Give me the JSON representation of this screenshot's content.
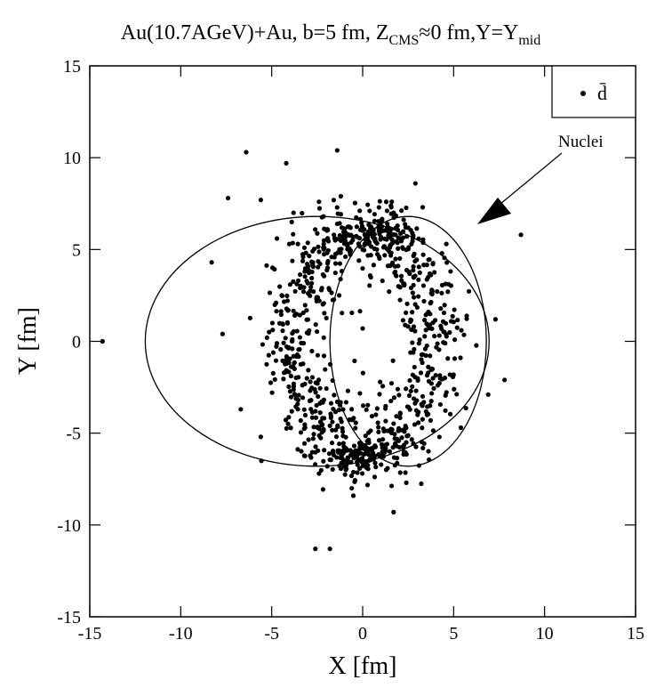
{
  "chart_data": {
    "type": "scatter",
    "title": {
      "base": "Au(10.7AGeV)+Au, b=5 fm, Z",
      "sub1": "CMS",
      "mid": "≈0 fm,Y=Y",
      "sub2": "mid"
    },
    "xlabel": "X [fm]",
    "ylabel": "Y [fm]",
    "xlim": [
      -15,
      15
    ],
    "ylim": [
      -15,
      15
    ],
    "xticks": [
      -15,
      -10,
      -5,
      0,
      5,
      10,
      15
    ],
    "yticks": [
      -15,
      -10,
      -5,
      0,
      5,
      10,
      15
    ],
    "xtick_labels": [
      "-15",
      "-10",
      "-5",
      "0",
      "5",
      "10",
      "15"
    ],
    "ytick_labels": [
      "-15",
      "-10",
      "-5",
      "0",
      "5",
      "10",
      "15"
    ],
    "grid": false,
    "legend": {
      "position": "top-right",
      "marker": "•",
      "label": "d̄"
    },
    "annotation": {
      "text": "Nuclei"
    },
    "nuclei": [
      {
        "name": "nucleus-left",
        "cx": -2.5,
        "cy": 0,
        "rx": 9.45,
        "ry": 6.8
      },
      {
        "name": "nucleus-right",
        "cx": 2.5,
        "cy": 0,
        "rx": 4.3,
        "ry": 6.8
      }
    ],
    "series": [
      {
        "name": "d̄",
        "points": [
          [
            -14.3,
            0.0
          ],
          [
            -6.4,
            10.3
          ],
          [
            -4.2,
            9.7
          ],
          [
            -1.4,
            10.4
          ],
          [
            -7.4,
            7.8
          ],
          [
            -5.6,
            7.7
          ],
          [
            -8.3,
            4.3
          ],
          [
            -3.8,
            7.0
          ],
          [
            -2.4,
            7.6
          ],
          [
            8.7,
            5.8
          ],
          [
            2.9,
            8.6
          ],
          [
            7.8,
            -2.1
          ],
          [
            1.7,
            -9.3
          ],
          [
            -2.6,
            -11.3
          ],
          [
            -1.8,
            -11.3
          ],
          [
            0.0,
            0.7
          ],
          [
            7.3,
            1.2
          ],
          [
            -7.7,
            0.4
          ],
          [
            -6.7,
            -3.7
          ],
          [
            6.9,
            -2.9
          ],
          [
            -1.2,
            7.9
          ],
          [
            1.6,
            7.6
          ],
          [
            3.3,
            7.3
          ],
          [
            -3.9,
            6.5
          ],
          [
            4.6,
            5.3
          ],
          [
            -5.6,
            -5.2
          ],
          [
            5.4,
            -4.7
          ],
          [
            -2.4,
            -7.2
          ],
          [
            2.4,
            -7.7
          ],
          [
            -0.6,
            -8.0
          ]
        ],
        "clusters": {
          "ring_rx": 4.1,
          "ring_ry": 5.7,
          "ring_count": 780,
          "top_cap": {
            "cx": 0.6,
            "cy": 5.8,
            "rx": 2.8,
            "ry": 0.9,
            "count": 90
          },
          "bottom_cap": {
            "cx": -0.2,
            "cy": -6.1,
            "rx": 2.8,
            "ry": 1.0,
            "count": 110
          },
          "seed": 17
        }
      }
    ]
  }
}
